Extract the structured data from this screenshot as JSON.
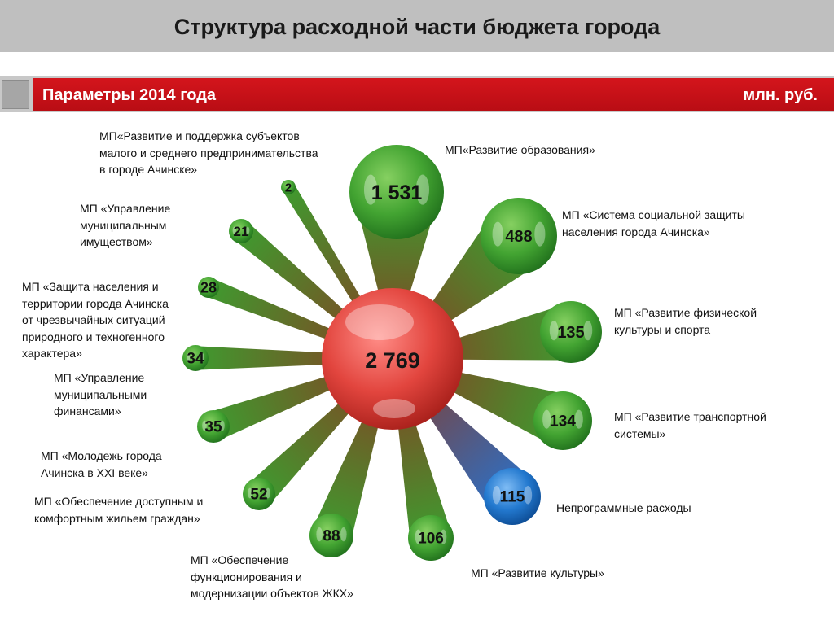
{
  "header": {
    "title": "Структура расходной части бюджета города"
  },
  "params": {
    "left": "Параметры 2014 года",
    "right": "млн. руб."
  },
  "colors": {
    "green": "#3c9a31",
    "red": "#e0453f",
    "blue": "#1f73c9",
    "spoke_dark": "#8b3a22",
    "header_red": "#c8131a"
  },
  "chart_data": {
    "type": "radial-bubble",
    "center": {
      "value": 2769,
      "label": "2 769"
    },
    "items": [
      {
        "name": "МП«Развитие образования»",
        "value": 1531,
        "label": "1 531",
        "color": "green"
      },
      {
        "name": "МП «Система социальной защиты населения города Ачинска»",
        "value": 488,
        "label": "488",
        "color": "green"
      },
      {
        "name": "МП «Развитие физической культуры и спорта",
        "value": 135,
        "label": "135",
        "color": "green"
      },
      {
        "name": "МП «Развитие транспортной системы»",
        "value": 134,
        "label": "134",
        "color": "green"
      },
      {
        "name": "Непрограммные расходы",
        "value": 115,
        "label": "115",
        "color": "blue"
      },
      {
        "name": "МП «Развитие культуры»",
        "value": 106,
        "label": "106",
        "color": "green"
      },
      {
        "name": "МП «Обеспечение функционирования и модернизации объектов ЖКХ»",
        "value": 88,
        "label": "88",
        "color": "green"
      },
      {
        "name": "МП «Обеспечение доступным и комфортным жильем граждан»",
        "value": 52,
        "label": "52",
        "color": "green"
      },
      {
        "name": "МП «Молодежь города Ачинска в XXI веке»",
        "value": 35,
        "label": "35",
        "color": "green"
      },
      {
        "name": "МП «Управление муниципальными финансами»",
        "value": 34,
        "label": "34",
        "color": "green"
      },
      {
        "name": "МП «Защита населения и территории города Ачинска от чрезвычайных ситуаций природного и техногенного характера»",
        "value": 28,
        "label": "28",
        "color": "green"
      },
      {
        "name": "МП «Управление муниципальным имуществом»",
        "value": 21,
        "label": "21",
        "color": "green"
      },
      {
        "name": "МП«Развитие и поддержка субъектов малого и среднего предпринимательства в городе Ачинске»",
        "value": 2,
        "label": "2",
        "color": "green"
      }
    ]
  }
}
